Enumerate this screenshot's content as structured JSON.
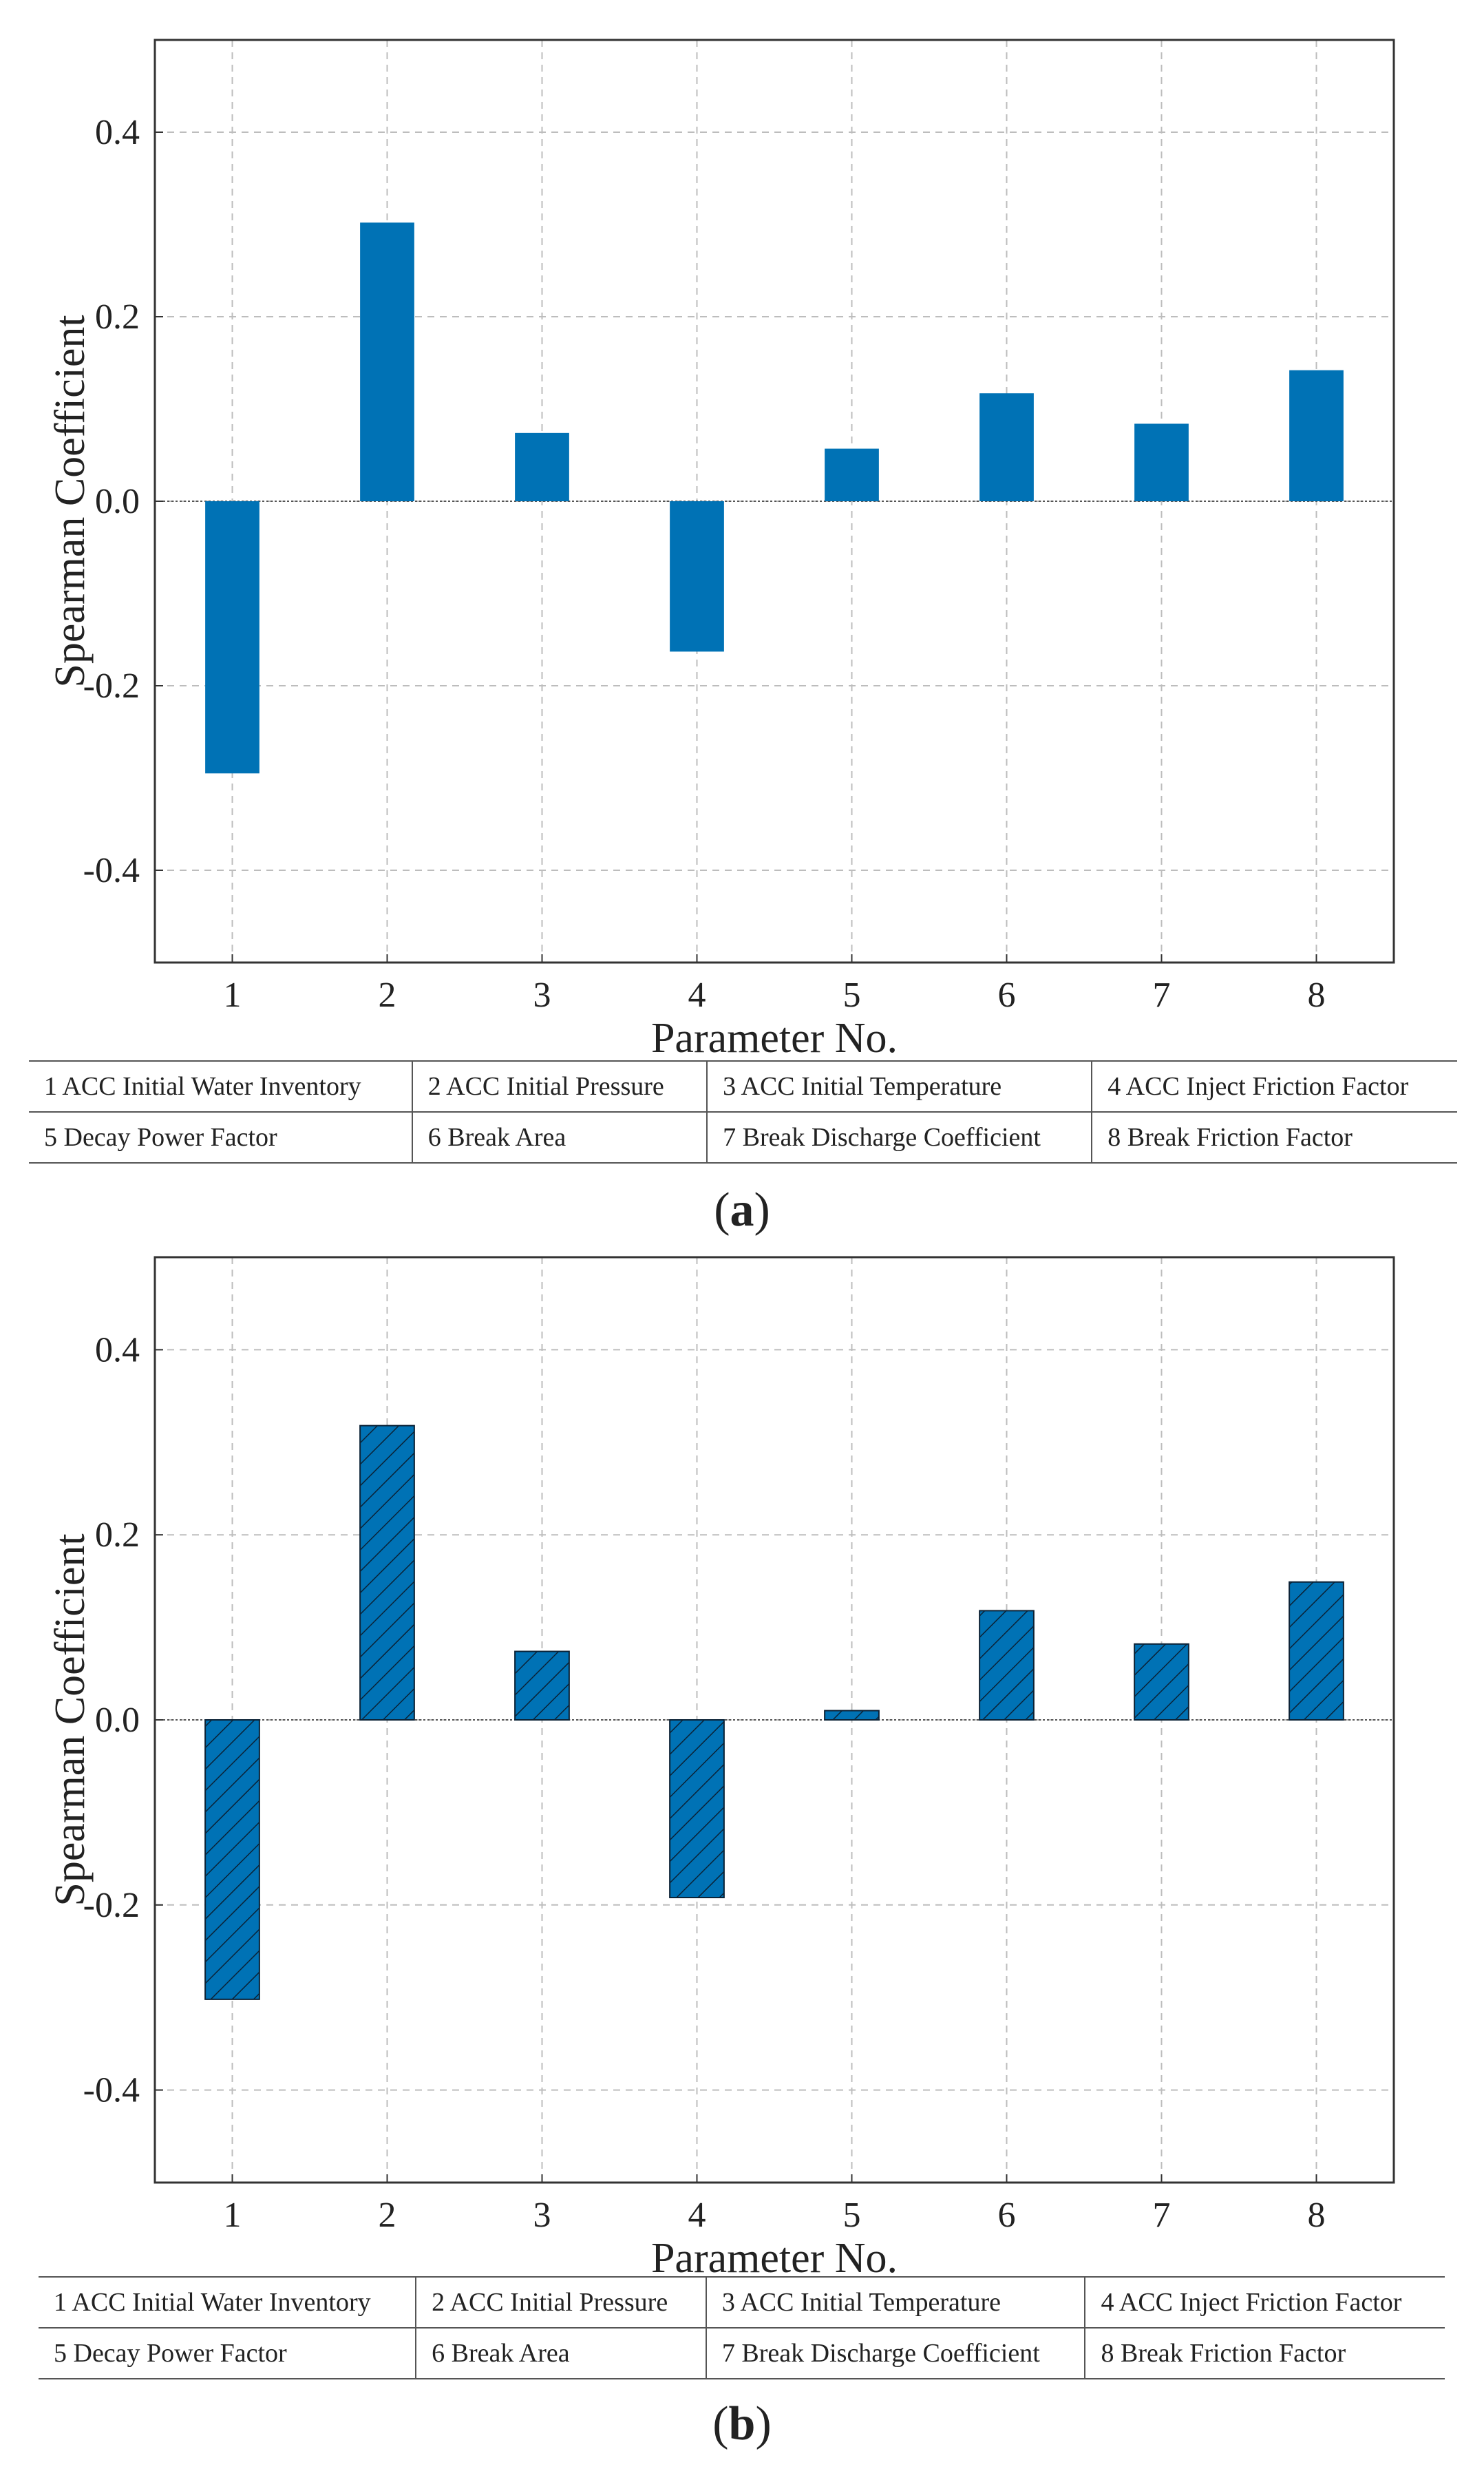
{
  "chart_data": [
    {
      "type": "bar",
      "panel_label": "a",
      "xlabel": "Parameter No.",
      "ylabel": "Spearman Coefficient",
      "categories": [
        "1",
        "2",
        "3",
        "4",
        "5",
        "6",
        "7",
        "8"
      ],
      "values": [
        -0.295,
        0.302,
        0.074,
        -0.163,
        0.057,
        0.117,
        0.084,
        0.142
      ],
      "ylim": [
        -0.5,
        0.5
      ],
      "yticks": [
        "0.4",
        "0.2",
        "0.0",
        "-0.2",
        "-0.4"
      ],
      "ytick_values": [
        0.4,
        0.2,
        0.0,
        -0.2,
        -0.4
      ],
      "grid": true,
      "bar_color": "#0072b5",
      "hatch": false,
      "legend_rows": [
        [
          "1 ACC Initial Water Inventory",
          "2 ACC Initial Pressure",
          "3 ACC Initial Temperature",
          "4 ACC Inject Friction Factor"
        ],
        [
          "5 Decay Power Factor",
          "6 Break Area",
          "7 Break Discharge Coefficient",
          "8 Break Friction Factor"
        ]
      ]
    },
    {
      "type": "bar",
      "panel_label": "b",
      "xlabel": "Parameter No.",
      "ylabel": "Spearman Coefficient",
      "categories": [
        "1",
        "2",
        "3",
        "4",
        "5",
        "6",
        "7",
        "8"
      ],
      "values": [
        -0.302,
        0.318,
        0.074,
        -0.192,
        0.01,
        0.118,
        0.082,
        0.149
      ],
      "ylim": [
        -0.5,
        0.5
      ],
      "yticks": [
        "0.4",
        "0.2",
        "0.0",
        "-0.2",
        "-0.4"
      ],
      "ytick_values": [
        0.4,
        0.2,
        0.0,
        -0.2,
        -0.4
      ],
      "grid": true,
      "bar_color": "#0072b5",
      "hatch": true,
      "legend_rows": [
        [
          "1 ACC Initial Water Inventory",
          "2 ACC Initial Pressure",
          "3 ACC Initial Temperature",
          "4 ACC Inject Friction Factor"
        ],
        [
          "5 Decay Power Factor",
          "6 Break Area",
          "7 Break Discharge Coefficient",
          "8 Break Friction Factor"
        ]
      ]
    }
  ]
}
